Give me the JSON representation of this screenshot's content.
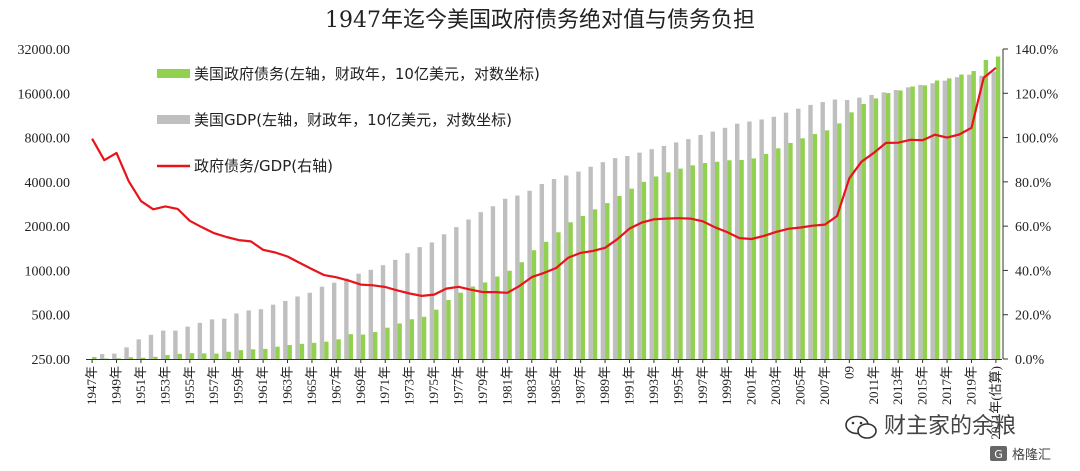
{
  "chart_data": {
    "type": "bar",
    "title": "1947年迄今美国政府债务绝对值与债务负担",
    "y_left": {
      "scale": "log2",
      "ticks": [
        "250.00",
        "500.00",
        "1000.00",
        "2000.00",
        "4000.00",
        "8000.00",
        "16000.00",
        "32000.00"
      ],
      "tick_values": [
        250,
        500,
        1000,
        2000,
        4000,
        8000,
        16000,
        32000
      ],
      "range": [
        250,
        32000
      ]
    },
    "y_right": {
      "scale": "linear",
      "ticks": [
        "0.0%",
        "20.0%",
        "40.0%",
        "60.0%",
        "80.0%",
        "100.0%",
        "120.0%",
        "140.0%"
      ],
      "tick_values": [
        0,
        20,
        40,
        60,
        80,
        100,
        120,
        140
      ],
      "range": [
        0,
        140
      ]
    },
    "x_tick_labels": [
      "1947年",
      "1949年",
      "1951年",
      "1953年",
      "1955年",
      "1957年",
      "1959年",
      "1961年",
      "1963年",
      "1965年",
      "1967年",
      "1969年",
      "1971年",
      "1973年",
      "1975年",
      "1977年",
      "1979年",
      "1981年",
      "1983年",
      "1985年",
      "1987年",
      "1989年",
      "1991年",
      "1993年",
      "1995年",
      "1997年",
      "1999年",
      "2001年",
      "2003年",
      "2005年",
      "2007年",
      "09",
      "2011年",
      "2013年",
      "2015年",
      "2017年",
      "2019年",
      "2021年(估算)"
    ],
    "years": [
      1947,
      1948,
      1949,
      1950,
      1951,
      1952,
      1953,
      1954,
      1955,
      1956,
      1957,
      1958,
      1959,
      1960,
      1961,
      1962,
      1963,
      1964,
      1965,
      1966,
      1967,
      1968,
      1969,
      1970,
      1971,
      1972,
      1973,
      1974,
      1975,
      1976,
      1977,
      1978,
      1979,
      1980,
      1981,
      1982,
      1983,
      1984,
      1985,
      1986,
      1987,
      1988,
      1989,
      1990,
      1991,
      1992,
      1993,
      1994,
      1995,
      1996,
      1997,
      1998,
      1999,
      2000,
      2001,
      2002,
      2003,
      2004,
      2005,
      2006,
      2007,
      2008,
      2009,
      2010,
      2011,
      2012,
      2013,
      2014,
      2015,
      2016,
      2017,
      2018,
      2019,
      2020,
      2021
    ],
    "series": [
      {
        "name": "美国政府债务(左轴，财政年，10亿美元，对数坐标)",
        "type": "bar",
        "axis": "left",
        "color": "#92d050",
        "values": [
          258,
          252,
          253,
          257,
          255,
          259,
          266,
          271,
          274,
          273,
          272,
          280,
          287,
          291,
          293,
          303,
          311,
          317,
          322,
          328,
          340,
          369,
          366,
          381,
          408,
          436,
          466,
          484,
          541,
          629,
          706,
          777,
          829,
          909,
          995,
          1137,
          1372,
          1565,
          1817,
          2125,
          2346,
          2601,
          2868,
          3206,
          3598,
          4001,
          4351,
          4643,
          4921,
          5181,
          5369,
          5478,
          5605,
          5628,
          5770,
          6198,
          6760,
          7355,
          7905,
          8451,
          8951,
          9986,
          11876,
          13529,
          14764,
          16051,
          16719,
          17794,
          18120,
          19539,
          20205,
          21462,
          22669,
          26945,
          28430
        ]
      },
      {
        "name": "美国GDP(左轴，财政年，10亿美元，对数坐标)",
        "type": "bar",
        "axis": "left",
        "color": "#bfbfbf",
        "values": [
          250,
          270,
          272,
          300,
          340,
          365,
          390,
          390,
          415,
          440,
          465,
          470,
          510,
          535,
          545,
          585,
          620,
          665,
          705,
          775,
          825,
          880,
          950,
          1010,
          1085,
          1180,
          1310,
          1440,
          1550,
          1760,
          1970,
          2220,
          2490,
          2730,
          3070,
          3230,
          3480,
          3870,
          4180,
          4420,
          4700,
          5070,
          5440,
          5800,
          5990,
          6320,
          6670,
          7020,
          7420,
          7810,
          8340,
          8790,
          9320,
          9950,
          10290,
          10620,
          11070,
          11820,
          12570,
          13340,
          13950,
          14510,
          14400,
          14960,
          15570,
          16230,
          16840,
          17560,
          18230,
          18720,
          19510,
          20580,
          21430,
          21060,
          22500
        ]
      },
      {
        "name": "政府债务/GDP(右轴)",
        "type": "line",
        "axis": "right",
        "color": "#e8141c",
        "values": [
          99.5,
          89.8,
          93.1,
          80.3,
          71.3,
          67.6,
          68.9,
          67.8,
          62.4,
          59.5,
          56.8,
          55.1,
          53.7,
          53.1,
          49.3,
          48.1,
          46.3,
          43.4,
          40.6,
          37.9,
          36.9,
          35.4,
          33.6,
          33.3,
          32.5,
          31.0,
          29.6,
          28.5,
          29.1,
          31.8,
          32.6,
          31.3,
          30.2,
          30.2,
          29.9,
          33.0,
          37.0,
          38.9,
          41.1,
          45.8,
          47.9,
          48.8,
          50.2,
          54.1,
          58.9,
          61.6,
          63.1,
          63.4,
          63.6,
          63.4,
          62.2,
          59.5,
          57.3,
          54.6,
          54.2,
          55.6,
          57.4,
          58.8,
          59.4,
          60.2,
          60.7,
          64.6,
          81.6,
          89.1,
          93.1,
          97.6,
          97.7,
          99.0,
          98.8,
          101.3,
          100.0,
          101.4,
          104.4,
          127.0,
          131.5
        ]
      }
    ],
    "legend_position": "top-left"
  },
  "watermark": {
    "wechat_label": "财主家的余粮",
    "corner_label": "格隆汇"
  }
}
